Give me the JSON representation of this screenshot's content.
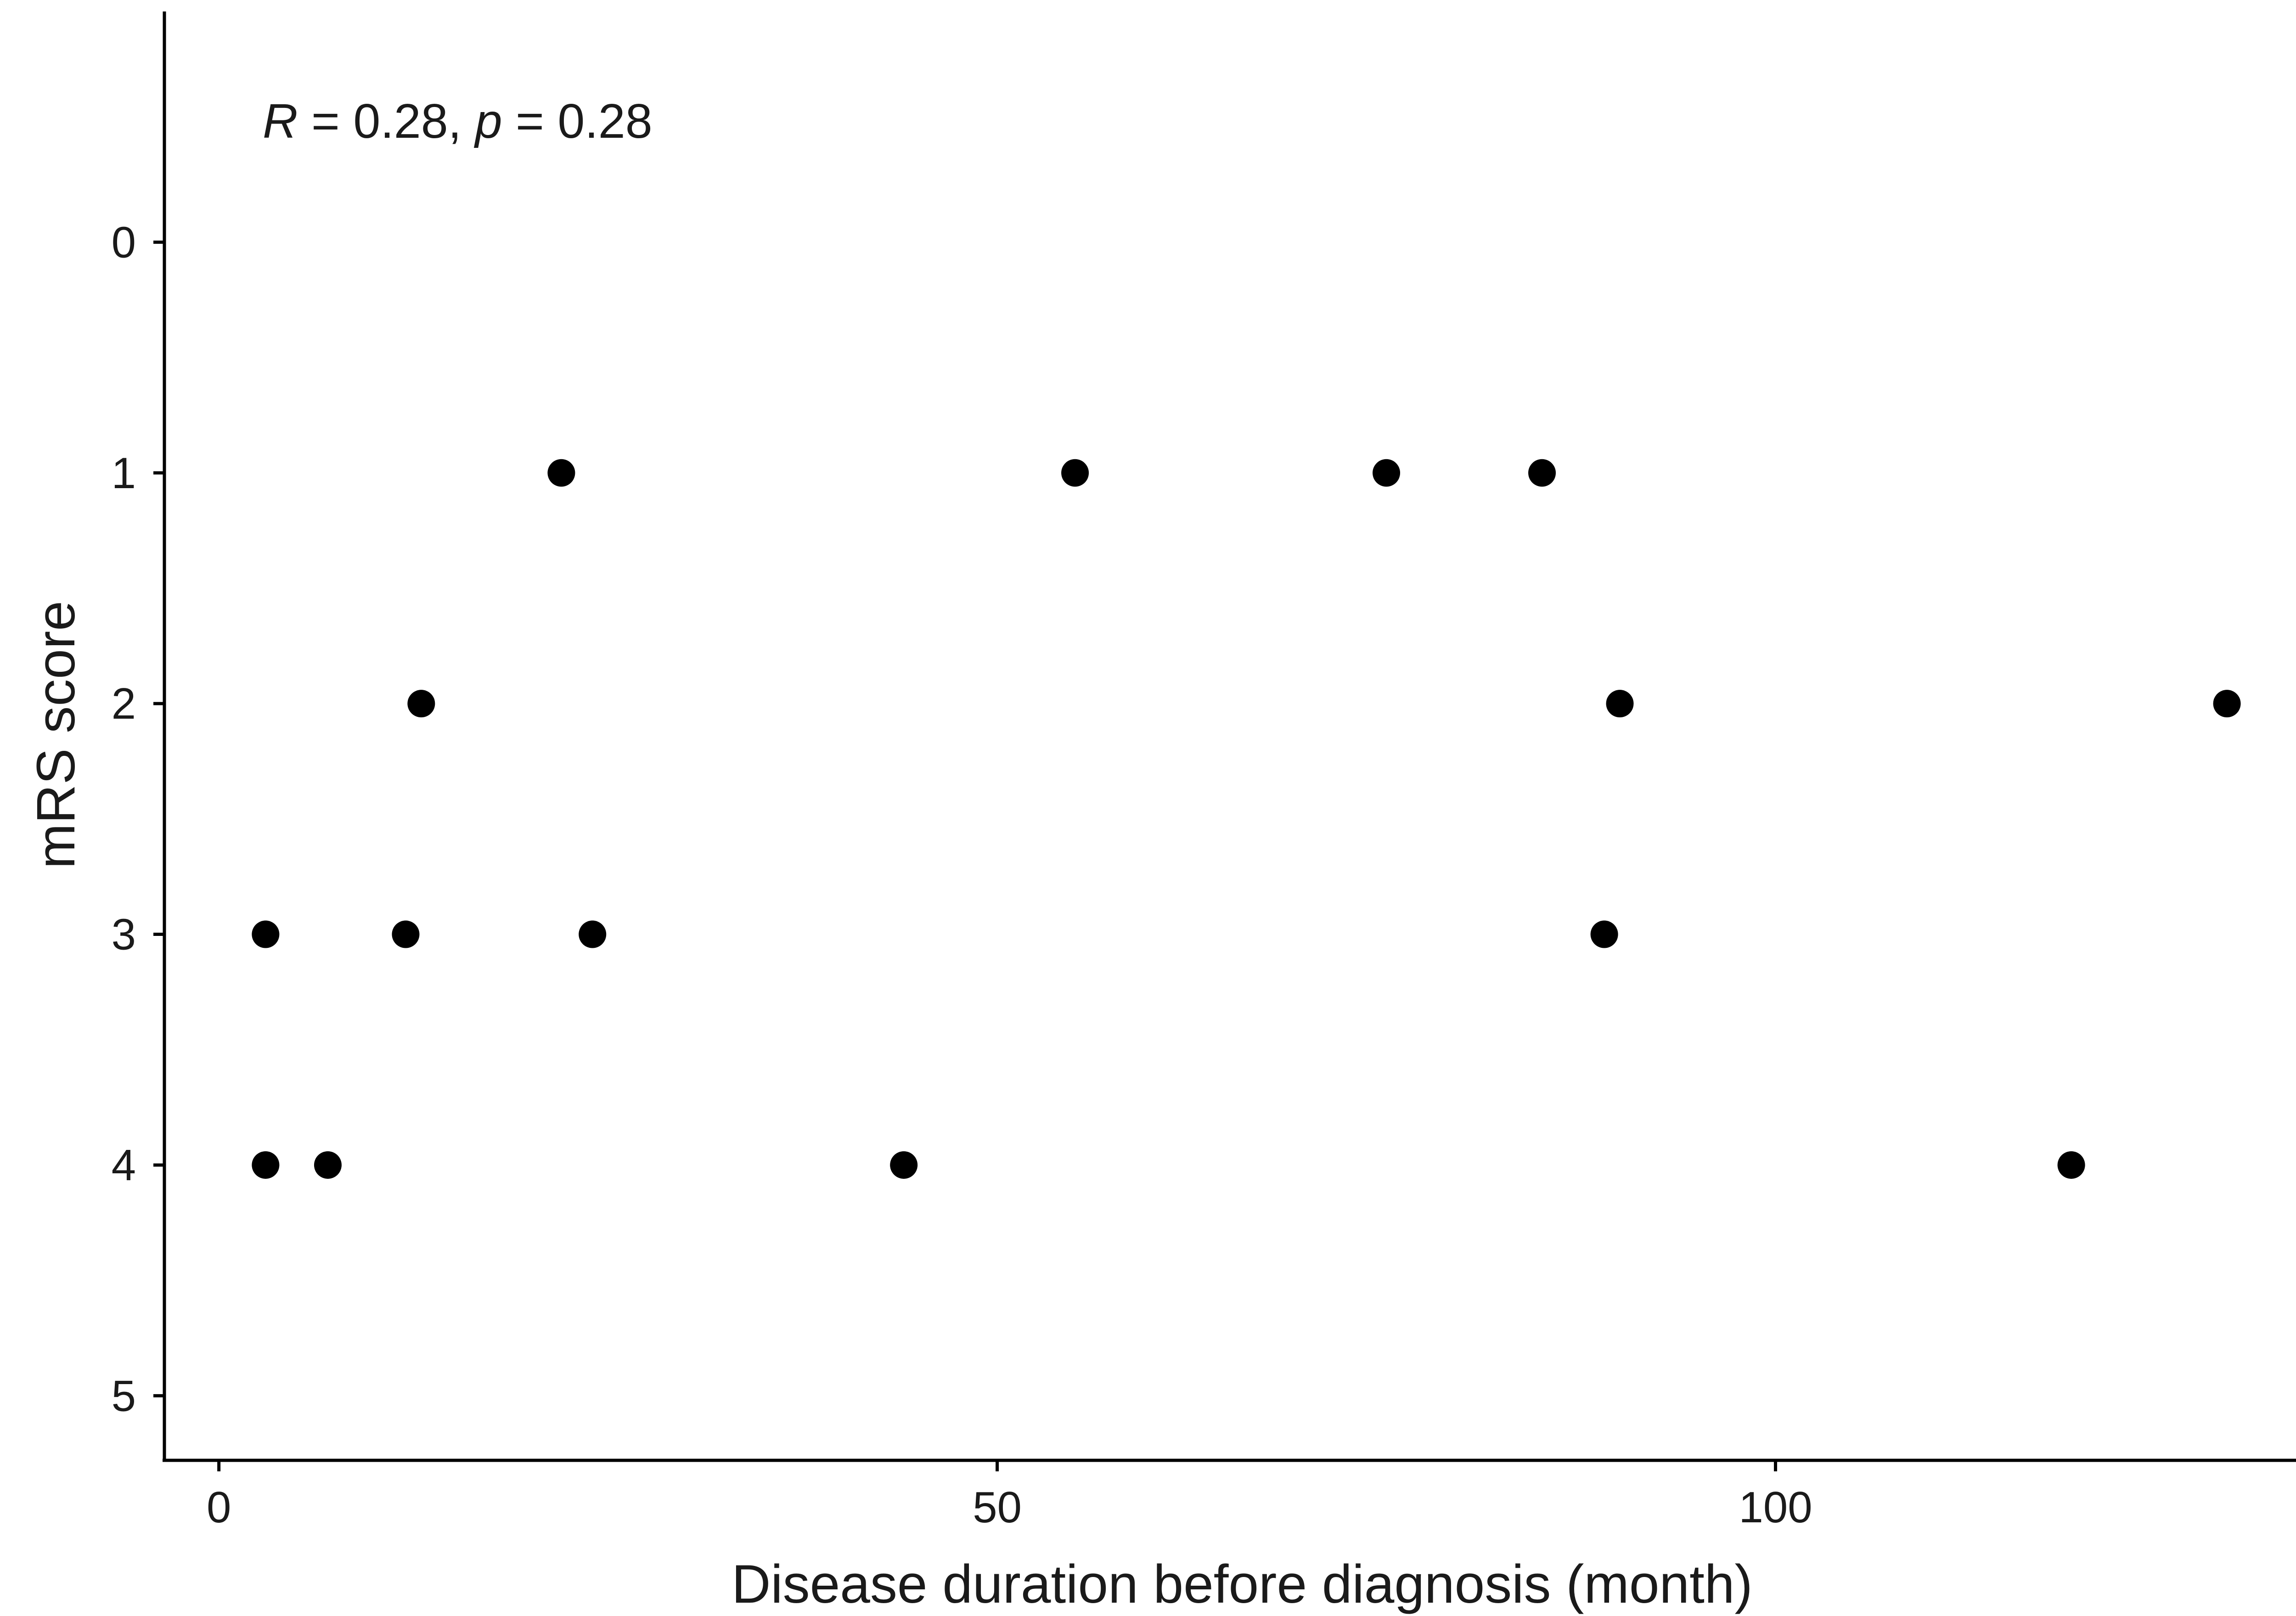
{
  "chart_data": {
    "type": "scatter",
    "title": "",
    "xlabel": "Disease duration before diagnosis (month)",
    "ylabel": "mRS score",
    "xlim": [
      -3.5,
      135
    ],
    "ylim": [
      5.28,
      -1.0
    ],
    "y_reversed": true,
    "xticks": [
      0,
      50,
      100
    ],
    "yticks": [
      0,
      1,
      2,
      3,
      4,
      5
    ],
    "grid": false,
    "annotation": {
      "R_symbol": "R",
      "R_text": " = 0.28, ",
      "p_symbol": "p",
      "p_text": " = 0.28"
    },
    "point_color": "#000000",
    "points": [
      {
        "x": 22,
        "y": 1
      },
      {
        "x": 55,
        "y": 1
      },
      {
        "x": 75,
        "y": 1
      },
      {
        "x": 85,
        "y": 1
      },
      {
        "x": 13,
        "y": 2
      },
      {
        "x": 90,
        "y": 2
      },
      {
        "x": 129,
        "y": 2
      },
      {
        "x": 3,
        "y": 3
      },
      {
        "x": 12,
        "y": 3
      },
      {
        "x": 24,
        "y": 3
      },
      {
        "x": 89,
        "y": 3
      },
      {
        "x": 3,
        "y": 4
      },
      {
        "x": 7,
        "y": 4
      },
      {
        "x": 44,
        "y": 4
      },
      {
        "x": 119,
        "y": 4
      }
    ]
  }
}
